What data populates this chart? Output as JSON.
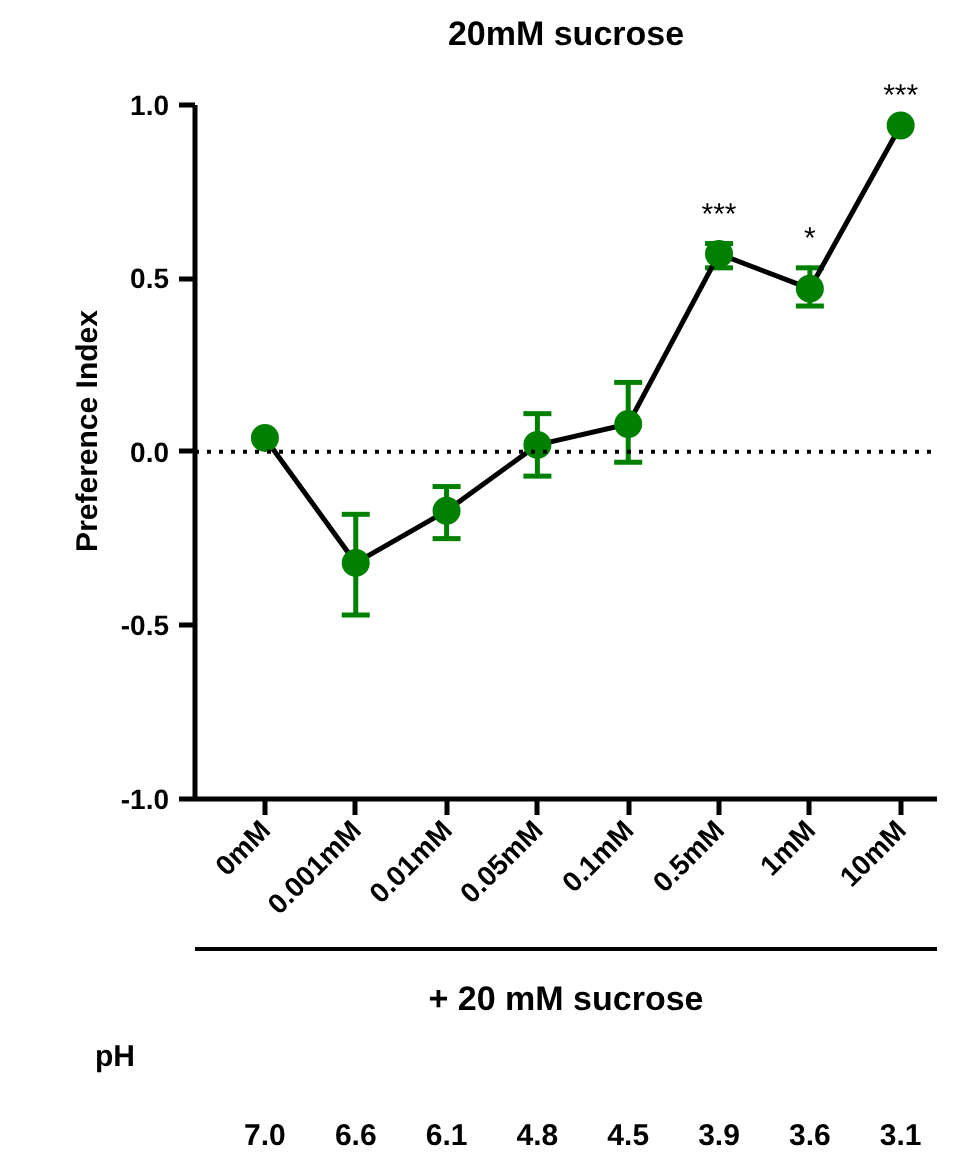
{
  "chart_data": {
    "type": "line",
    "title": "20mM sucrose",
    "ylabel": "Preference Index",
    "xlabel": "+ 20 mM sucrose",
    "categories": [
      "0mM",
      "0.001mM",
      "0.01mM",
      "0.05mM",
      "0.1mM",
      "0.5mM",
      "1mM",
      "10mM"
    ],
    "values": [
      0.04,
      -0.32,
      -0.17,
      0.02,
      0.08,
      0.57,
      0.47,
      0.94
    ],
    "errors": [
      null,
      [
        -0.47,
        -0.18
      ],
      [
        -0.25,
        -0.1
      ],
      [
        -0.07,
        0.11
      ],
      [
        -0.03,
        0.2
      ],
      [
        0.53,
        0.6
      ],
      [
        0.42,
        0.53
      ],
      null
    ],
    "color": "#008000",
    "marker": "circle",
    "line_style": "solid",
    "ylim": [
      -1,
      1
    ],
    "yticks": [
      {
        "value": -1,
        "label": "-1.0"
      },
      {
        "value": -0.5,
        "label": "-0.5"
      },
      {
        "value": 0,
        "label": "0.0"
      },
      {
        "value": 0.5,
        "label": "0.5"
      },
      {
        "value": 1,
        "label": "1.0"
      }
    ],
    "ref_lines": [
      {
        "axis": "y",
        "value": 0,
        "line_style": "dotted",
        "color": "#000000"
      }
    ],
    "annotations": [
      {
        "text": "***",
        "x": "0.5mM",
        "y": 0.6
      },
      {
        "text": "*",
        "x": "1mM",
        "y": 0.53
      },
      {
        "text": "***",
        "x": "10mM",
        "y": 0.94
      },
      "pH",
      "7.0",
      "6.6",
      "6.1",
      "4.8",
      "4.5",
      "3.9",
      "3.6",
      "3.1"
    ],
    "grid": false
  }
}
